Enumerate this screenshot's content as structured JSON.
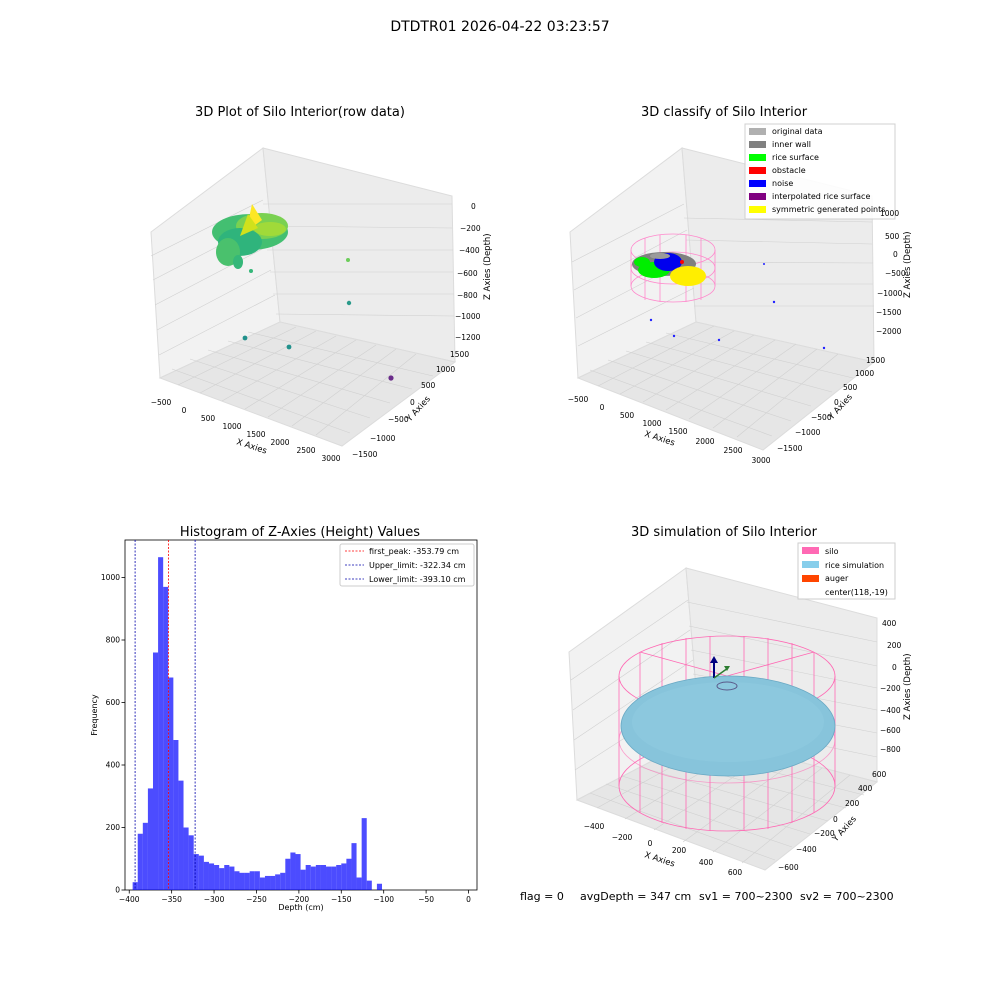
{
  "figure_title": "DTDTR01 2026-04-22 03:23:57",
  "chart_data": [
    {
      "type": "scatter",
      "projection": "3d",
      "title": "3D Plot of Silo Interior(row data)",
      "xlabel": "X Axies",
      "ylabel": "Y Axies",
      "zlabel": "Z Axies (Depth)",
      "x_ticks": [
        "−500",
        "0",
        "500",
        "1000",
        "1500",
        "2000",
        "2500",
        "3000"
      ],
      "y_ticks": [
        "−1500",
        "−1000",
        "−500",
        "0",
        "500",
        "1000",
        "1500"
      ],
      "z_ticks": [
        "−1200",
        "−1000",
        "−800",
        "−600",
        "−400",
        "−200",
        "0"
      ],
      "colormap": "viridis",
      "notes": "Dense cluster of surface points near x≈-300..500 at depth ≈-200..-500, plus a few scattered outliers"
    },
    {
      "type": "scatter",
      "projection": "3d",
      "title": "3D classify of Silo Interior",
      "zlabel": "Z Axies (Depth)",
      "xlabel": "X Axies",
      "ylabel": "Y Axies",
      "x_ticks": [
        "−500",
        "0",
        "500",
        "1000",
        "1500",
        "2000",
        "2500",
        "3000"
      ],
      "y_ticks": [
        "−1500",
        "−1000",
        "−500",
        "0",
        "500",
        "1000",
        "1500"
      ],
      "z_ticks": [
        "−2000",
        "−1500",
        "−1000",
        "−500",
        "0",
        "500",
        "1000"
      ],
      "legend_position": "top-right",
      "legend": [
        {
          "label": "original data",
          "color": "#b0b0b0"
        },
        {
          "label": "inner wall",
          "color": "#808080"
        },
        {
          "label": "rice surface",
          "color": "#00ff00"
        },
        {
          "label": "obstacle",
          "color": "#ff0000"
        },
        {
          "label": "noise",
          "color": "#0000ff"
        },
        {
          "label": "interpolated rice surface",
          "color": "#800080"
        },
        {
          "label": "symmetric generated points",
          "color": "#ffff00"
        }
      ]
    },
    {
      "type": "bar",
      "title": "Histogram of Z-Axies (Height) Values",
      "xlabel": "Depth (cm)",
      "ylabel": "Frequency",
      "xlim": [
        -405,
        10
      ],
      "ylim": [
        0,
        1120
      ],
      "x_ticks": [
        -400,
        -350,
        -300,
        -250,
        -200,
        -150,
        -100,
        -50,
        0
      ],
      "y_ticks": [
        0,
        200,
        400,
        600,
        800,
        1000
      ],
      "bin_start": -396,
      "bin_width": 6,
      "color": "#0000ff",
      "values": [
        25,
        180,
        215,
        325,
        760,
        1065,
        970,
        680,
        480,
        350,
        200,
        175,
        115,
        110,
        90,
        85,
        80,
        70,
        80,
        75,
        60,
        55,
        55,
        60,
        60,
        40,
        45,
        45,
        50,
        55,
        100,
        120,
        115,
        65,
        80,
        75,
        80,
        80,
        75,
        75,
        80,
        85,
        100,
        150,
        40,
        230,
        30,
        0,
        20
      ],
      "vlines": [
        {
          "label": "first_peak: -353.79 cm",
          "x": -353.79,
          "color": "#ff0000"
        },
        {
          "label": "Upper_limit: -322.34 cm",
          "x": -322.34,
          "color": "#0000aa"
        },
        {
          "label": "Lower_limit: -393.10 cm",
          "x": -393.1,
          "color": "#0000aa"
        }
      ],
      "legend_position": "top-right"
    },
    {
      "type": "scatter",
      "projection": "3d",
      "title": "3D simulation of Silo Interior",
      "xlabel": "X Axies",
      "ylabel": "Y Axies",
      "zlabel": "Z Axies (Depth)",
      "x_ticks": [
        "−400",
        "−200",
        "0",
        "200",
        "400",
        "600"
      ],
      "y_ticks": [
        "−600",
        "−400",
        "−200",
        "0",
        "200",
        "400",
        "600"
      ],
      "z_ticks": [
        "−800",
        "−600",
        "−400",
        "−200",
        "0",
        "200",
        "400"
      ],
      "legend_position": "top-right",
      "legend": [
        {
          "label": "silo",
          "color": "#ff69b4"
        },
        {
          "label": "rice simulation",
          "color": "#87ceeb"
        },
        {
          "label": "auger",
          "color": "#ff4500"
        },
        {
          "label": "center(118,-19)",
          "color": ""
        }
      ]
    }
  ],
  "footer": {
    "flag": "flag = 0",
    "avgdepth": "avgDepth = 347 cm",
    "sv1": "sv1 = 700~2300",
    "sv2": "sv2 = 700~2300"
  }
}
